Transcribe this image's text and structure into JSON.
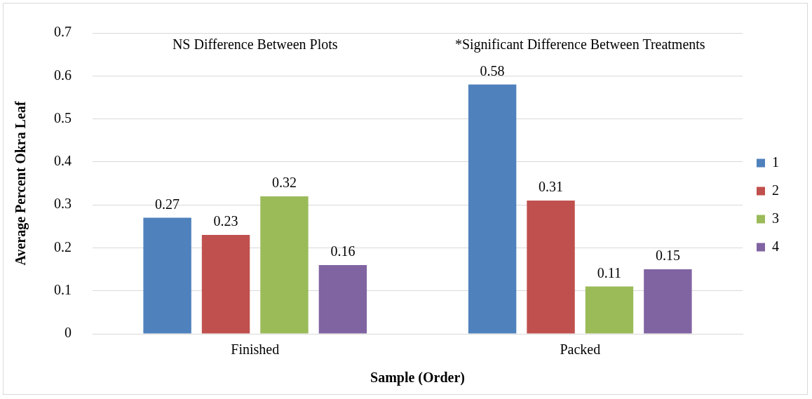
{
  "chart_data": {
    "type": "bar",
    "xlabel": "Sample (Order)",
    "ylabel": "Average Percent Okra Leaf",
    "categories": [
      "Finished",
      "Packed"
    ],
    "series": [
      {
        "name": "1",
        "color": "#4f81bd",
        "values": [
          0.27,
          0.58
        ]
      },
      {
        "name": "2",
        "color": "#c0504d",
        "values": [
          0.23,
          0.31
        ]
      },
      {
        "name": "3",
        "color": "#9bbb59",
        "values": [
          0.32,
          0.11
        ]
      },
      {
        "name": "4",
        "color": "#8064a2",
        "values": [
          0.16,
          0.15
        ]
      }
    ],
    "ylim": [
      0,
      0.7
    ],
    "yticks": [
      0,
      0.1,
      0.2,
      0.3,
      0.4,
      0.5,
      0.6,
      0.7
    ],
    "grid": "y",
    "legend": "right",
    "data_labels": true,
    "annotations": [
      "NS Difference Between Plots",
      "*Significant Difference Between Treatments"
    ]
  }
}
